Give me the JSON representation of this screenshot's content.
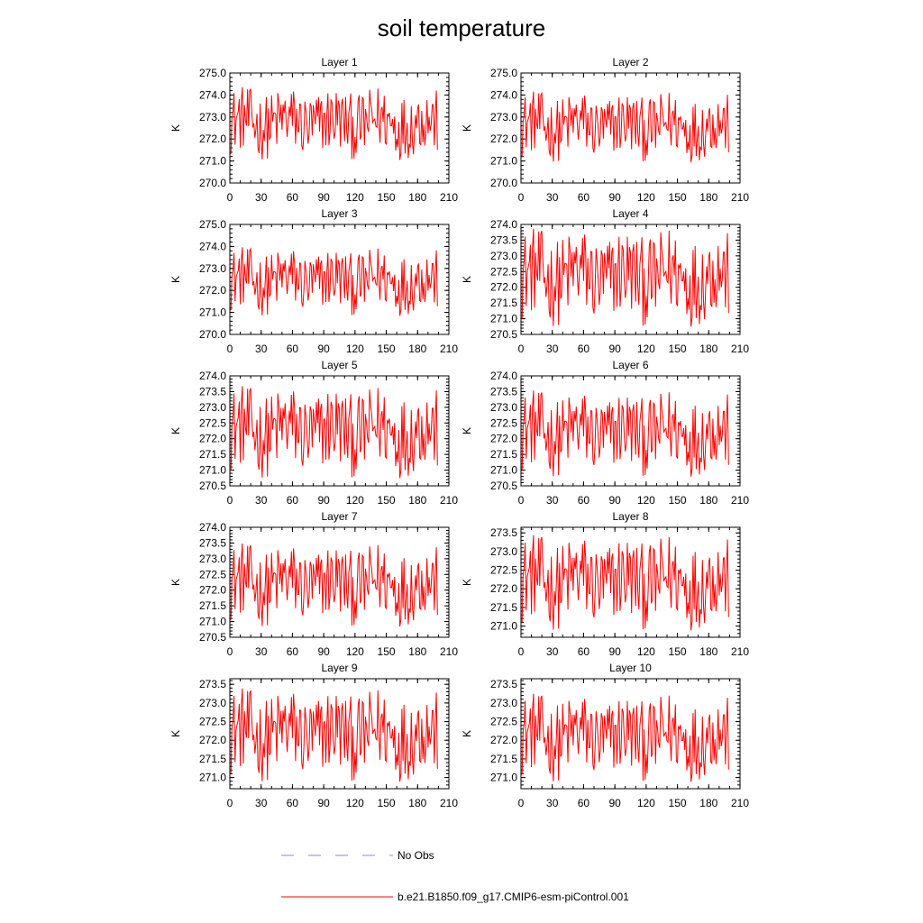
{
  "figure": {
    "title": "soil temperature"
  },
  "legend": {
    "items": [
      {
        "label": "No Obs",
        "color": "#8a8ad0",
        "style": "dashed"
      },
      {
        "label": "b.e21.B1850.f09_g17.CMIP6-esm-piControl.001",
        "color": "#ff0000",
        "style": "solid"
      }
    ]
  },
  "chart_data": [
    {
      "type": "line",
      "title": "Layer 1",
      "ylabel": "K",
      "xlim": [
        0,
        210
      ],
      "xticks": [
        0,
        30,
        60,
        90,
        120,
        150,
        180,
        210
      ],
      "ylim": [
        270.0,
        275.0
      ],
      "yticks": [
        "270.0",
        "271.0",
        "272.0",
        "273.0",
        "274.0",
        "275.0"
      ],
      "ymin": 271.0,
      "ymax": 274.5,
      "series": [
        {
          "name": "b.e21.B1850.f09_g17.CMIP6-esm-piControl.001",
          "color": "#ff0000"
        }
      ]
    },
    {
      "type": "line",
      "title": "Layer 2",
      "ylabel": "K",
      "xlim": [
        0,
        210
      ],
      "xticks": [
        0,
        30,
        60,
        90,
        120,
        150,
        180,
        210
      ],
      "ylim": [
        270.0,
        275.0
      ],
      "yticks": [
        "270.0",
        "271.0",
        "272.0",
        "273.0",
        "274.0",
        "275.0"
      ],
      "ymin": 270.9,
      "ymax": 274.3,
      "series": [
        {
          "name": "b.e21.B1850.f09_g17.CMIP6-esm-piControl.001",
          "color": "#ff0000"
        }
      ]
    },
    {
      "type": "line",
      "title": "Layer 3",
      "ylabel": "K",
      "xlim": [
        0,
        210
      ],
      "xticks": [
        0,
        30,
        60,
        90,
        120,
        150,
        180,
        210
      ],
      "ylim": [
        270.0,
        275.0
      ],
      "yticks": [
        "270.0",
        "271.0",
        "272.0",
        "273.0",
        "274.0",
        "275.0"
      ],
      "ymin": 270.8,
      "ymax": 274.1,
      "series": [
        {
          "name": "b.e21.B1850.f09_g17.CMIP6-esm-piControl.001",
          "color": "#ff0000"
        }
      ]
    },
    {
      "type": "line",
      "title": "Layer 4",
      "ylabel": "K",
      "xlim": [
        0,
        210
      ],
      "xticks": [
        0,
        30,
        60,
        90,
        120,
        150,
        180,
        210
      ],
      "ylim": [
        270.5,
        274.0
      ],
      "yticks": [
        "270.5",
        "271.0",
        "271.5",
        "272.0",
        "272.5",
        "273.0",
        "273.5",
        "274.0"
      ],
      "ymin": 270.7,
      "ymax": 274.0,
      "series": [
        {
          "name": "b.e21.B1850.f09_g17.CMIP6-esm-piControl.001",
          "color": "#ff0000"
        }
      ]
    },
    {
      "type": "line",
      "title": "Layer 5",
      "ylabel": "K",
      "xlim": [
        0,
        210
      ],
      "xticks": [
        0,
        30,
        60,
        90,
        120,
        150,
        180,
        210
      ],
      "ylim": [
        270.5,
        274.0
      ],
      "yticks": [
        "270.5",
        "271.0",
        "271.5",
        "272.0",
        "272.5",
        "273.0",
        "273.5",
        "274.0"
      ],
      "ymin": 270.7,
      "ymax": 273.8,
      "series": [
        {
          "name": "b.e21.B1850.f09_g17.CMIP6-esm-piControl.001",
          "color": "#ff0000"
        }
      ]
    },
    {
      "type": "line",
      "title": "Layer 6",
      "ylabel": "K",
      "xlim": [
        0,
        210
      ],
      "xticks": [
        0,
        30,
        60,
        90,
        120,
        150,
        180,
        210
      ],
      "ylim": [
        270.5,
        274.0
      ],
      "yticks": [
        "270.5",
        "271.0",
        "271.5",
        "272.0",
        "272.5",
        "273.0",
        "273.5",
        "274.0"
      ],
      "ymin": 270.75,
      "ymax": 273.65,
      "series": [
        {
          "name": "b.e21.B1850.f09_g17.CMIP6-esm-piControl.001",
          "color": "#ff0000"
        }
      ]
    },
    {
      "type": "line",
      "title": "Layer 7",
      "ylabel": "K",
      "xlim": [
        0,
        210
      ],
      "xticks": [
        0,
        30,
        60,
        90,
        120,
        150,
        180,
        210
      ],
      "ylim": [
        270.5,
        274.0
      ],
      "yticks": [
        "270.5",
        "271.0",
        "271.5",
        "272.0",
        "272.5",
        "273.0",
        "273.5",
        "274.0"
      ],
      "ymin": 270.8,
      "ymax": 273.6,
      "series": [
        {
          "name": "b.e21.B1850.f09_g17.CMIP6-esm-piControl.001",
          "color": "#ff0000"
        }
      ]
    },
    {
      "type": "line",
      "title": "Layer 8",
      "ylabel": "K",
      "xlim": [
        0,
        210
      ],
      "xticks": [
        0,
        30,
        60,
        90,
        120,
        150,
        180,
        210
      ],
      "ylim": [
        270.7,
        273.65
      ],
      "yticks": [
        "271.0",
        "271.5",
        "272.0",
        "272.5",
        "273.0",
        "273.5"
      ],
      "ymin": 270.85,
      "ymax": 273.55,
      "series": [
        {
          "name": "b.e21.B1850.f09_g17.CMIP6-esm-piControl.001",
          "color": "#ff0000"
        }
      ]
    },
    {
      "type": "line",
      "title": "Layer 9",
      "ylabel": "K",
      "xlim": [
        0,
        210
      ],
      "xticks": [
        0,
        30,
        60,
        90,
        120,
        150,
        180,
        210
      ],
      "ylim": [
        270.7,
        273.65
      ],
      "yticks": [
        "271.0",
        "271.5",
        "272.0",
        "272.5",
        "273.0",
        "273.5"
      ],
      "ymin": 270.85,
      "ymax": 273.5,
      "series": [
        {
          "name": "b.e21.B1850.f09_g17.CMIP6-esm-piControl.001",
          "color": "#ff0000"
        }
      ]
    },
    {
      "type": "line",
      "title": "Layer 10",
      "ylabel": "K",
      "xlim": [
        0,
        210
      ],
      "xticks": [
        0,
        30,
        60,
        90,
        120,
        150,
        180,
        210
      ],
      "ylim": [
        270.7,
        273.65
      ],
      "yticks": [
        "271.0",
        "271.5",
        "272.0",
        "272.5",
        "273.0",
        "273.5"
      ],
      "ymin": 270.85,
      "ymax": 273.35,
      "series": [
        {
          "name": "b.e21.B1850.f09_g17.CMIP6-esm-piControl.001",
          "color": "#ff0000"
        }
      ]
    }
  ]
}
